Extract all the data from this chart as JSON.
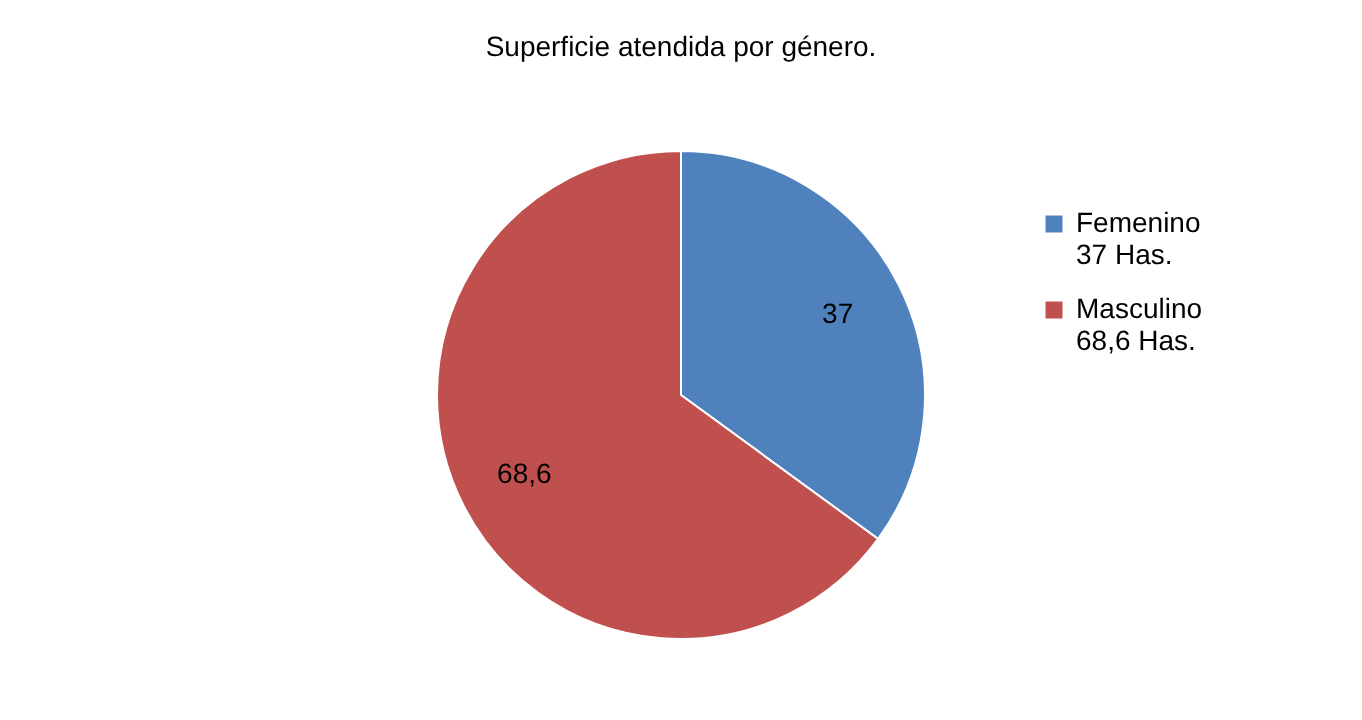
{
  "chart_data": {
    "type": "pie",
    "title": "Superficie atendida por género.",
    "categories": [
      "Femenino\n37  Has.",
      "Masculino\n68,6 Has."
    ],
    "values": [
      37,
      68.6
    ],
    "value_labels": [
      "37",
      "68,6"
    ],
    "colors": [
      "#4f81bd",
      "#c0504d"
    ],
    "legend": "right"
  }
}
